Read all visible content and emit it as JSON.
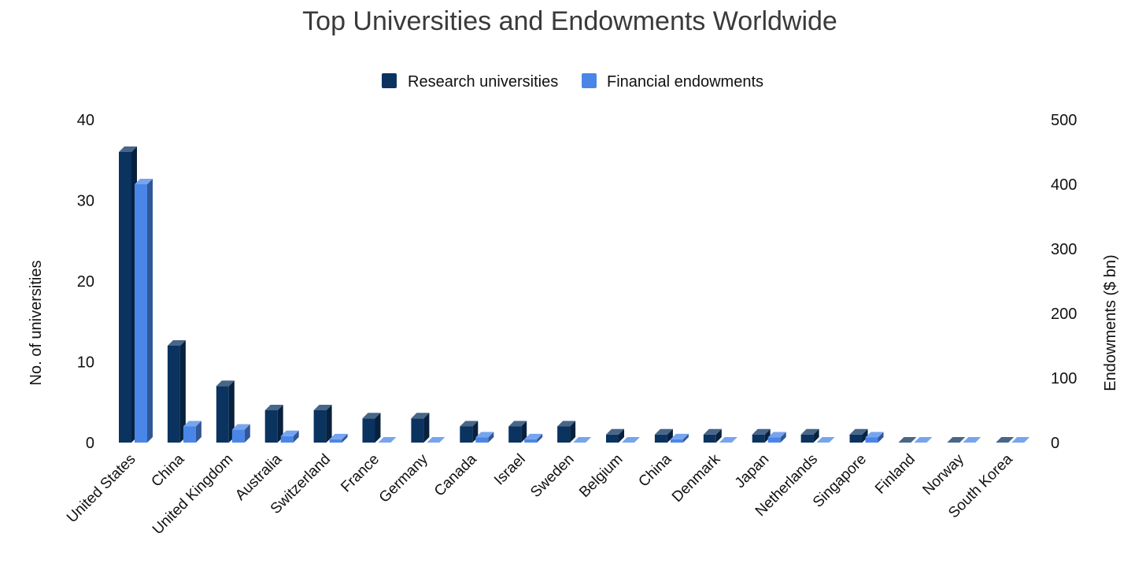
{
  "chart_data": {
    "type": "bar",
    "title": "Top Universities and Endowments Worldwide",
    "categories": [
      "United States",
      "China",
      "United Kingdom",
      "Australia",
      "Switzerland",
      "France",
      "Germany",
      "Canada",
      "Israel",
      "Sweden",
      "Belgium",
      "China",
      "Denmark",
      "Japan",
      "Netherlands",
      "Singapore",
      "Finland",
      "Norway",
      "South Korea"
    ],
    "series": [
      {
        "name": "Research universities",
        "axis": "left",
        "color": "#0b3360",
        "values": [
          36,
          12,
          7,
          4,
          4,
          3,
          3,
          2,
          2,
          2,
          1,
          1,
          1,
          1,
          1,
          1,
          0,
          0,
          0
        ]
      },
      {
        "name": "Financial endowments",
        "axis": "right",
        "color": "#4a86e8",
        "values": [
          400,
          25,
          20,
          10,
          5,
          0,
          0,
          8,
          5,
          0,
          0,
          5,
          0,
          8,
          0,
          8,
          0,
          0,
          0
        ]
      }
    ],
    "ylabel": "No. of universities",
    "ylabel_right": "Endowments ($ bn)",
    "ylim": [
      0,
      40
    ],
    "ylim_right": [
      0,
      500
    ],
    "yticks": [
      0,
      10,
      20,
      30,
      40
    ],
    "yticks_right": [
      0,
      100,
      200,
      300,
      400,
      500
    ],
    "legend_position": "top-center",
    "grid": false,
    "style": "3d-bar"
  }
}
